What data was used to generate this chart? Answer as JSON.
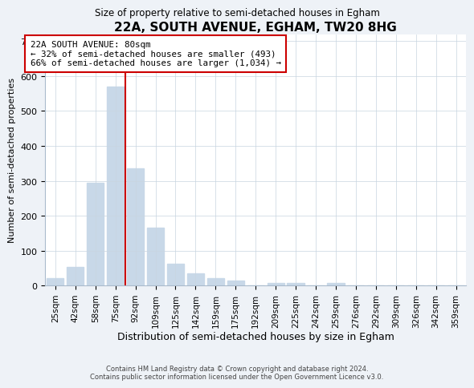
{
  "title": "22A, SOUTH AVENUE, EGHAM, TW20 8HG",
  "subtitle": "Size of property relative to semi-detached houses in Egham",
  "xlabel": "Distribution of semi-detached houses by size in Egham",
  "ylabel": "Number of semi-detached properties",
  "bar_labels": [
    "25sqm",
    "42sqm",
    "58sqm",
    "75sqm",
    "92sqm",
    "109sqm",
    "125sqm",
    "142sqm",
    "159sqm",
    "175sqm",
    "192sqm",
    "209sqm",
    "225sqm",
    "242sqm",
    "259sqm",
    "276sqm",
    "292sqm",
    "309sqm",
    "326sqm",
    "342sqm",
    "359sqm"
  ],
  "bar_values": [
    22,
    53,
    295,
    570,
    335,
    165,
    62,
    35,
    20,
    14,
    0,
    7,
    8,
    0,
    7,
    0,
    0,
    0,
    0,
    0,
    0
  ],
  "bar_color": "#c8d8e8",
  "annotation_title": "22A SOUTH AVENUE: 80sqm",
  "annotation_line1": "← 32% of semi-detached houses are smaller (493)",
  "annotation_line2": "66% of semi-detached houses are larger (1,034) →",
  "vline_color": "#cc0000",
  "annotation_box_color": "#ffffff",
  "annotation_box_edge": "#cc0000",
  "ylim": [
    0,
    720
  ],
  "yticks": [
    0,
    100,
    200,
    300,
    400,
    500,
    600,
    700
  ],
  "footer1": "Contains HM Land Registry data © Crown copyright and database right 2024.",
  "footer2": "Contains public sector information licensed under the Open Government Licence v3.0.",
  "background_color": "#eef2f7",
  "plot_background": "#ffffff"
}
